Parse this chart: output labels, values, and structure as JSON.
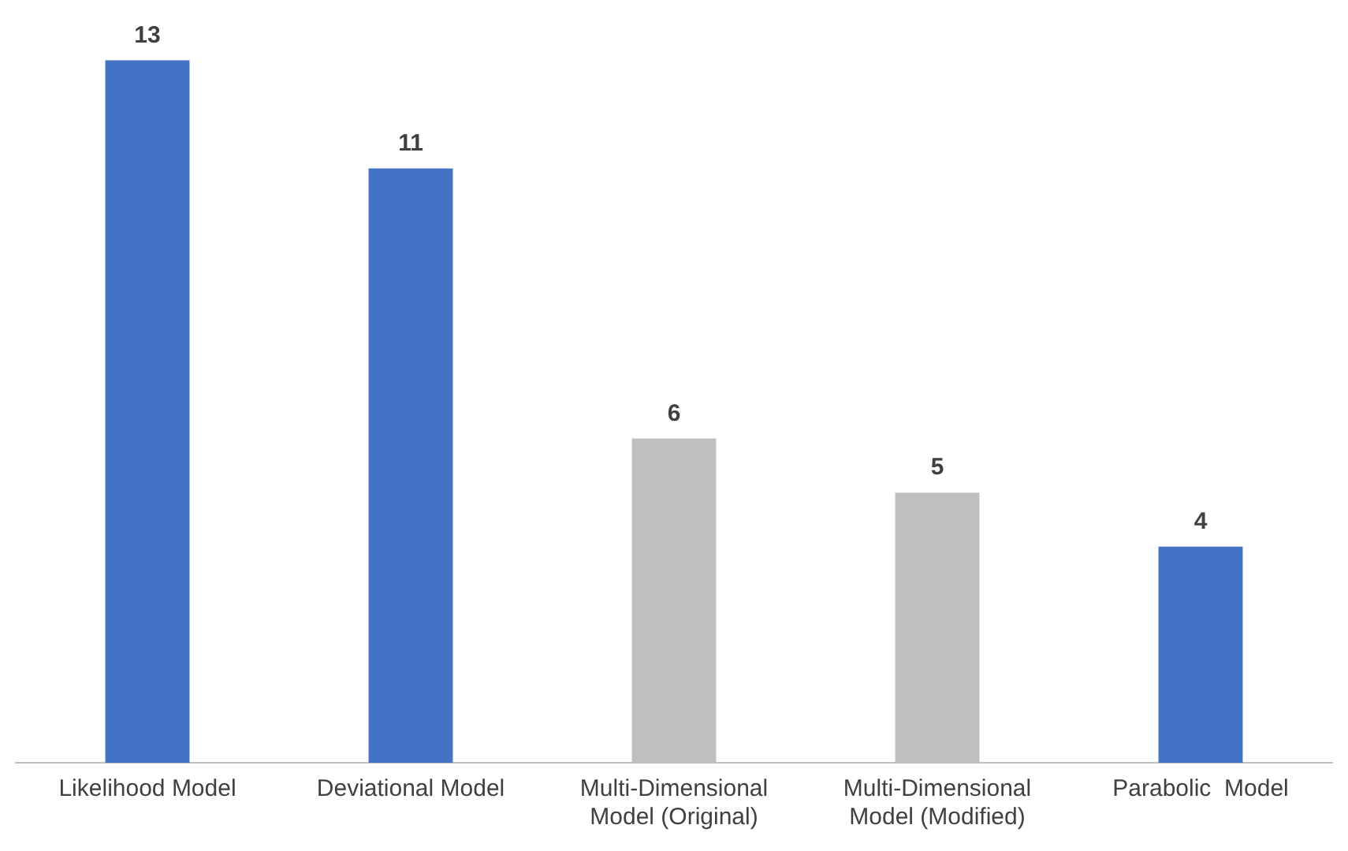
{
  "chart_data": {
    "type": "bar",
    "categories": [
      "Likelihood Model",
      "Deviational Model",
      "Multi-Dimensional Model (Original)",
      "Multi-Dimensional Model (Modified)",
      "Parabolic  Model"
    ],
    "values": [
      13,
      11,
      6,
      5,
      4
    ],
    "colors": [
      "#4472c4",
      "#4472c4",
      "#bfbfbf",
      "#bfbfbf",
      "#4472c4"
    ],
    "data_labels": true,
    "grid": false,
    "legend": false
  }
}
